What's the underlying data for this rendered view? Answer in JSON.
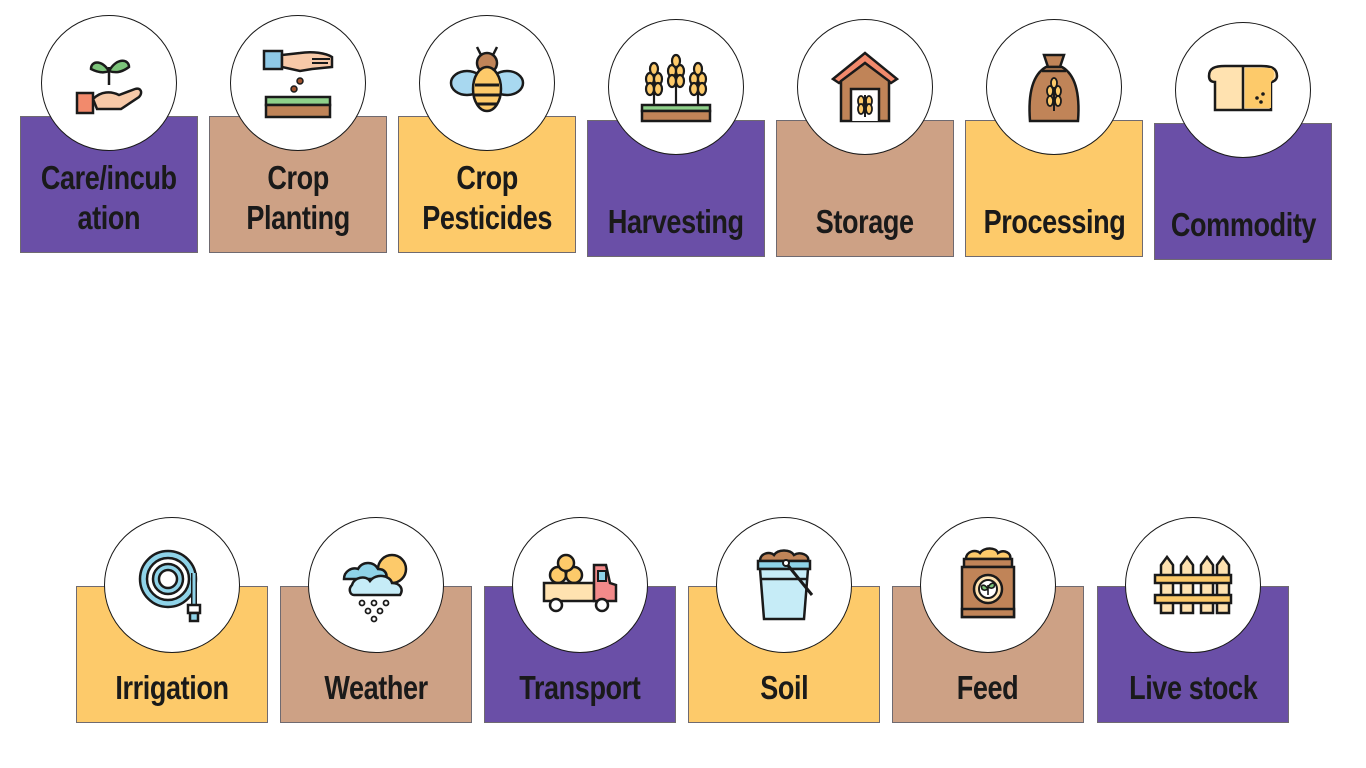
{
  "colors": {
    "purple": "#6a4fa7",
    "tan": "#cda185",
    "yellow": "#fdca6a",
    "outline": "#1a1a1a"
  },
  "top_row": [
    {
      "label": "Care/incub\nation",
      "icon": "hand-sprout-icon",
      "color": "purple"
    },
    {
      "label": "Crop\nPlanting",
      "icon": "seed-planting-icon",
      "color": "tan"
    },
    {
      "label": "Crop\nPesticides",
      "icon": "bee-icon",
      "color": "yellow"
    },
    {
      "label": "Harvesting",
      "icon": "wheat-icon",
      "color": "purple"
    },
    {
      "label": "Storage",
      "icon": "granary-icon",
      "color": "tan"
    },
    {
      "label": "Processing",
      "icon": "grain-sack-icon",
      "color": "yellow"
    },
    {
      "label": "Commodity",
      "icon": "bread-icon",
      "color": "purple"
    }
  ],
  "bottom_row": [
    {
      "label": "Irrigation",
      "icon": "hose-icon",
      "color": "yellow"
    },
    {
      "label": "Weather",
      "icon": "cloud-sun-rain-icon",
      "color": "tan"
    },
    {
      "label": "Transport",
      "icon": "truck-icon",
      "color": "purple"
    },
    {
      "label": "Soil",
      "icon": "soil-bucket-icon",
      "color": "yellow"
    },
    {
      "label": "Feed",
      "icon": "feed-bag-icon",
      "color": "tan"
    },
    {
      "label": "Live stock",
      "icon": "fence-icon",
      "color": "purple"
    }
  ]
}
